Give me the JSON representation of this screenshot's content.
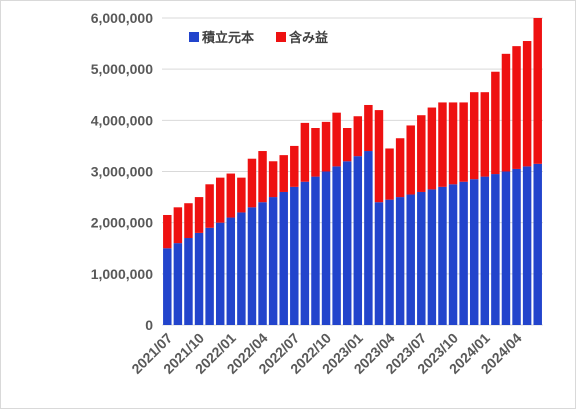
{
  "chart_data": {
    "type": "bar",
    "stacked": true,
    "title": "",
    "xlabel": "",
    "ylabel": "",
    "ylim": [
      0,
      6000000
    ],
    "yticks": [
      0,
      1000000,
      2000000,
      3000000,
      4000000,
      5000000,
      6000000
    ],
    "ytick_labels": [
      "0",
      "1,000,000",
      "2,000,000",
      "3,000,000",
      "4,000,000",
      "5,000,000",
      "6,000,000"
    ],
    "xtick_labels": [
      "2021/07",
      "2021/10",
      "2022/01",
      "2022/04",
      "2022/07",
      "2022/10",
      "2023/01",
      "2023/04",
      "2023/07",
      "2023/10",
      "2024/01",
      "2024/04"
    ],
    "grid": "horizontal",
    "legend_position": "top-left",
    "categories": [
      "2021/07",
      "2021/08",
      "2021/09",
      "2021/10",
      "2021/11",
      "2021/12",
      "2022/01",
      "2022/02",
      "2022/03",
      "2022/04",
      "2022/05",
      "2022/06",
      "2022/07",
      "2022/08",
      "2022/09",
      "2022/10",
      "2022/11",
      "2022/12",
      "2023/01",
      "2023/02",
      "2023/03",
      "2023/04",
      "2023/05",
      "2023/06",
      "2023/07",
      "2023/08",
      "2023/09",
      "2023/10",
      "2023/11",
      "2023/12",
      "2024/01",
      "2024/02",
      "2024/03",
      "2024/04",
      "2024/05",
      "2024/06"
    ],
    "series": [
      {
        "name": "積立元本",
        "color": "#2244cc",
        "values": [
          1500000,
          1600000,
          1700000,
          1800000,
          1900000,
          2000000,
          2100000,
          2200000,
          2300000,
          2400000,
          2500000,
          2600000,
          2700000,
          2800000,
          2900000,
          3000000,
          3100000,
          3200000,
          3300000,
          3400000,
          2400000,
          2450000,
          2500000,
          2550000,
          2600000,
          2650000,
          2700000,
          2750000,
          2800000,
          2850000,
          2900000,
          2950000,
          3000000,
          3050000,
          3100000,
          3150000
        ]
      },
      {
        "name": "含み益",
        "color": "#ee1111",
        "values": [
          650000,
          700000,
          680000,
          700000,
          850000,
          880000,
          860000,
          680000,
          950000,
          1000000,
          700000,
          720000,
          800000,
          1150000,
          950000,
          970000,
          1050000,
          650000,
          780000,
          900000,
          1800000,
          1000000,
          1150000,
          1350000,
          1500000,
          1600000,
          1650000,
          1600000,
          1550000,
          1700000,
          1650000,
          2000000,
          2300000,
          2400000,
          2450000,
          2850000
        ]
      }
    ]
  }
}
